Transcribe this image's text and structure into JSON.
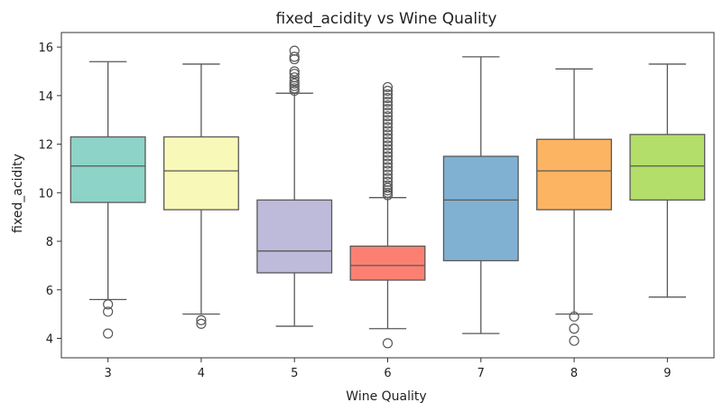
{
  "chart_data": {
    "type": "box",
    "title": "fixed_acidity vs Wine Quality",
    "xlabel": "Wine Quality",
    "ylabel": "fixed_acidity",
    "ylim": [
      3.2,
      16.6
    ],
    "yticks": [
      4,
      6,
      8,
      10,
      12,
      14,
      16
    ],
    "grid": false,
    "legend": "none",
    "categories": [
      "3",
      "4",
      "5",
      "6",
      "7",
      "8",
      "9"
    ],
    "colors": [
      "#8dd3c7",
      "#f8f8b8",
      "#bebada",
      "#fb8072",
      "#80b1d3",
      "#fdb462",
      "#b3de69"
    ],
    "edge_color": "#595959",
    "boxes": [
      {
        "category": "3",
        "whisker_low": 5.6,
        "q1": 9.6,
        "median": 11.1,
        "q3": 12.3,
        "whisker_high": 15.4,
        "outliers": [
          5.4,
          5.1,
          4.2
        ]
      },
      {
        "category": "4",
        "whisker_low": 5.0,
        "q1": 9.3,
        "median": 10.9,
        "q3": 12.3,
        "whisker_high": 15.3,
        "outliers": [
          4.75,
          4.6
        ]
      },
      {
        "category": "5",
        "whisker_low": 4.5,
        "q1": 6.7,
        "median": 7.6,
        "q3": 9.7,
        "whisker_high": 14.1,
        "outliers": [
          14.2,
          14.3,
          14.4,
          14.5,
          14.6,
          14.75,
          14.9,
          15.0,
          15.5,
          15.6,
          15.85
        ]
      },
      {
        "category": "6",
        "whisker_low": 4.4,
        "q1": 6.4,
        "median": 7.0,
        "q3": 7.8,
        "whisker_high": 9.8,
        "outliers": [
          3.8,
          9.9,
          10.0,
          10.1,
          10.2,
          10.3,
          10.45,
          10.6,
          10.75,
          10.9,
          11.05,
          11.2,
          11.35,
          11.5,
          11.65,
          11.8,
          11.95,
          12.1,
          12.25,
          12.4,
          12.55,
          12.7,
          12.85,
          13.0,
          13.15,
          13.3,
          13.45,
          13.6,
          13.75,
          13.9,
          14.05,
          14.2,
          14.35
        ]
      },
      {
        "category": "7",
        "whisker_low": 4.2,
        "q1": 7.2,
        "median": 9.7,
        "q3": 11.5,
        "whisker_high": 15.6,
        "outliers": []
      },
      {
        "category": "8",
        "whisker_low": 5.0,
        "q1": 9.3,
        "median": 10.9,
        "q3": 12.2,
        "whisker_high": 15.1,
        "outliers": [
          4.9,
          4.4,
          3.9
        ]
      },
      {
        "category": "9",
        "whisker_low": 5.7,
        "q1": 9.7,
        "median": 11.1,
        "q3": 12.4,
        "whisker_high": 15.3,
        "outliers": []
      }
    ]
  }
}
